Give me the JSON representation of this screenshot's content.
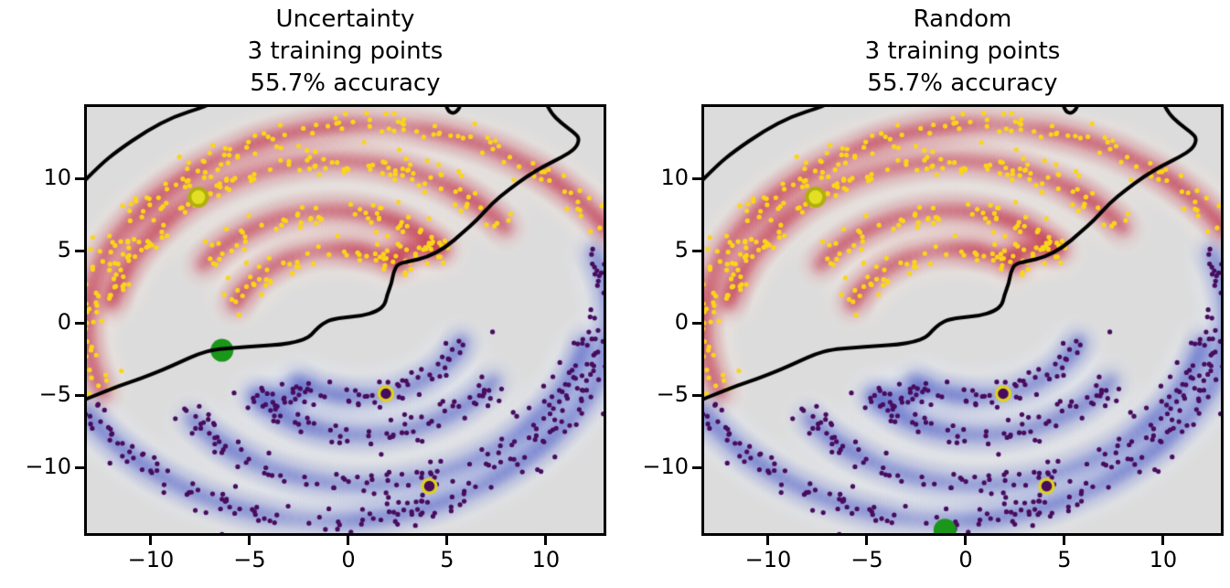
{
  "chart_data": {
    "type": "scatter",
    "description": "Active learning comparison on a two-spiral dataset; both panels show the same labeled data, probability bands and decision boundary, differing only in the next queried point (green).",
    "panels": [
      {
        "id": "uncertainty",
        "title_lines": [
          "Uncertainty",
          "3 training points",
          "55.7% accuracy"
        ],
        "queried_point": {
          "x": -6.4,
          "y": -1.9
        }
      },
      {
        "id": "random",
        "title_lines": [
          "Random",
          "3 training points",
          "55.7% accuracy"
        ],
        "queried_point": {
          "x": -1.05,
          "y": -14.35
        }
      }
    ],
    "axes": {
      "xlim": [
        -13.24,
        12.92
      ],
      "ylim": [
        -14.55,
        14.94
      ],
      "x_ticks": {
        "values": [
          -10,
          -5,
          0,
          5,
          10
        ],
        "labels": [
          "−10",
          "−5",
          "0",
          "5",
          "10"
        ]
      },
      "y_ticks": {
        "values": [
          10,
          5,
          0,
          -5,
          -10
        ],
        "labels": [
          "10",
          "5",
          "0",
          "−5",
          "−10"
        ]
      },
      "grid": false,
      "background_color": "#dcdcdc",
      "spine_color": "#000000"
    },
    "classes": [
      {
        "name": "red-spiral",
        "scatter_color": "#fbd519",
        "band_color": "#b40426",
        "halo_color": "#f7e9df",
        "mirrored": false
      },
      {
        "name": "blue-spiral",
        "scatter_color": "#470c5e",
        "band_color": "#3b4cc0",
        "halo_color": "#e8edf9",
        "mirrored": true
      }
    ],
    "band_centerlines_polar_deg_r": [
      [
        [
          202,
          13.35
        ],
        [
          190,
          13.3
        ],
        [
          175,
          13.25
        ],
        [
          160,
          13.2
        ],
        [
          145,
          13.0
        ],
        [
          130,
          13.0
        ],
        [
          115,
          13.2
        ],
        [
          100,
          13.5
        ],
        [
          90,
          13.7
        ],
        [
          78,
          13.85
        ],
        [
          65,
          14.0
        ],
        [
          52,
          14.15
        ],
        [
          40,
          14.35
        ],
        [
          30,
          14.55
        ],
        [
          24,
          14.7
        ]
      ],
      [
        [
          174,
          12.1
        ],
        [
          162,
          11.85
        ],
        [
          148,
          11.65
        ],
        [
          131,
          11.5
        ],
        [
          116,
          11.4
        ],
        [
          100,
          11.3
        ],
        [
          88,
          11.15
        ],
        [
          75,
          10.95
        ],
        [
          62,
          10.7
        ],
        [
          50,
          10.5
        ],
        [
          38,
          10.3
        ]
      ],
      [
        [
          152,
          8.4
        ],
        [
          138,
          8.25
        ],
        [
          124,
          8.1
        ],
        [
          110,
          8.0
        ],
        [
          96,
          7.8
        ],
        [
          82,
          7.6
        ],
        [
          68,
          7.35
        ],
        [
          56,
          7.1
        ],
        [
          46,
          6.95
        ],
        [
          52,
          6.5
        ],
        [
          60,
          5.85
        ],
        [
          63,
          5.2
        ]
      ],
      [
        [
          168,
          5.9
        ],
        [
          150,
          5.65
        ],
        [
          132,
          5.45
        ],
        [
          114,
          5.3
        ],
        [
          98,
          5.15
        ],
        [
          82,
          5.0
        ],
        [
          66,
          4.85
        ],
        [
          54,
          4.75
        ]
      ]
    ],
    "training_points": [
      {
        "x": -7.6,
        "y": 8.7,
        "class_index": 0,
        "fill": "#e4df25",
        "ring": "#b0b00e"
      },
      {
        "x": 1.9,
        "y": -4.9,
        "class_index": 1,
        "fill": "#470c5e",
        "ring": "#ddd021"
      },
      {
        "x": 4.1,
        "y": -11.3,
        "class_index": 1,
        "fill": "#470c5e",
        "ring": "#ddd021"
      }
    ],
    "queried_color": "#1a961a",
    "boundary_color": "#000000",
    "boundary_segments": [
      [
        [
          -13.6,
          9.5
        ],
        [
          -12.6,
          10.9
        ],
        [
          -11.7,
          11.9
        ],
        [
          -10.2,
          13.3
        ],
        [
          -8.8,
          14.3
        ],
        [
          -7.4,
          14.9
        ],
        [
          -6.6,
          15.4
        ]
      ],
      [
        [
          4.88,
          15.4
        ],
        [
          4.98,
          14.75
        ],
        [
          5.3,
          14.45
        ],
        [
          5.62,
          14.8
        ],
        [
          5.72,
          15.4
        ]
      ],
      [
        [
          9.95,
          15.4
        ],
        [
          10.2,
          14.6
        ],
        [
          10.8,
          13.8
        ],
        [
          11.5,
          13.1
        ],
        [
          11.7,
          12.7
        ],
        [
          11.5,
          12.05
        ],
        [
          10.8,
          11.45
        ],
        [
          9.9,
          10.85
        ],
        [
          9.0,
          10.1
        ],
        [
          8.1,
          9.2
        ],
        [
          7.3,
          8.3
        ],
        [
          6.5,
          7.1
        ],
        [
          5.8,
          6.25
        ],
        [
          4.9,
          5.2
        ],
        [
          4.0,
          4.55
        ],
        [
          3.1,
          4.25
        ],
        [
          2.5,
          4.1
        ],
        [
          2.28,
          3.5
        ],
        [
          2.2,
          2.8
        ],
        [
          1.95,
          1.9
        ],
        [
          1.85,
          1.25
        ],
        [
          1.45,
          0.8
        ],
        [
          0.7,
          0.5
        ],
        [
          -0.1,
          0.4
        ],
        [
          -0.85,
          0.25
        ],
        [
          -1.3,
          -0.05
        ],
        [
          -1.7,
          -0.55
        ],
        [
          -2.0,
          -1.0
        ],
        [
          -2.6,
          -1.3
        ],
        [
          -3.4,
          -1.5
        ],
        [
          -4.5,
          -1.6
        ],
        [
          -5.7,
          -1.72
        ],
        [
          -6.8,
          -1.85
        ],
        [
          -7.6,
          -2.15
        ],
        [
          -8.5,
          -2.7
        ],
        [
          -9.4,
          -3.25
        ],
        [
          -10.5,
          -3.85
        ],
        [
          -11.6,
          -4.35
        ],
        [
          -12.7,
          -4.95
        ],
        [
          -13.6,
          -5.45
        ]
      ]
    ],
    "scatter": {
      "seed": 11,
      "band_seed": 7,
      "points_per_unit": 4.1,
      "jitter_sigma": 0.5,
      "dot_radius_px": 2.6
    }
  }
}
